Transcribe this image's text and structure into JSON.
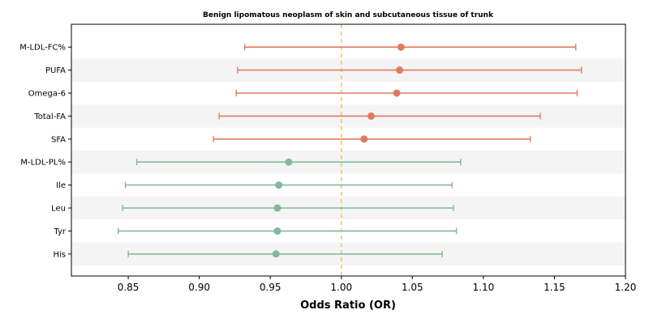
{
  "chart_data": {
    "type": "scatter",
    "subtype": "forest-plot",
    "title": "Benign lipomatous neoplasm of skin and subcutaneous tissue of trunk",
    "xlabel": "Odds Ratio (OR)",
    "ylabel": "",
    "xlim": [
      0.81,
      1.2
    ],
    "x_ticks": [
      0.85,
      0.9,
      0.95,
      1.0,
      1.05,
      1.1,
      1.15,
      1.2
    ],
    "x_tick_labels": [
      "0.85",
      "0.90",
      "0.95",
      "1.00",
      "1.05",
      "1.10",
      "1.15",
      "1.20"
    ],
    "reference_line": 1.0,
    "grid": false,
    "alternating_row_bands": true,
    "colors": {
      "risk": "#e07b5f",
      "protective": "#84b89c",
      "reference_line": "#f0c27a",
      "band": "#f4f4f4"
    },
    "rows": [
      {
        "label": "M-LDL-FC%",
        "or": 1.042,
        "lower": 0.932,
        "upper": 1.165,
        "group": "risk"
      },
      {
        "label": "PUFA",
        "or": 1.041,
        "lower": 0.927,
        "upper": 1.169,
        "group": "risk"
      },
      {
        "label": "Omega-6",
        "or": 1.039,
        "lower": 0.926,
        "upper": 1.166,
        "group": "risk"
      },
      {
        "label": "Total-FA",
        "or": 1.021,
        "lower": 0.914,
        "upper": 1.14,
        "group": "risk"
      },
      {
        "label": "SFA",
        "or": 1.016,
        "lower": 0.91,
        "upper": 1.133,
        "group": "risk"
      },
      {
        "label": "M-LDL-PL%",
        "or": 0.963,
        "lower": 0.856,
        "upper": 1.084,
        "group": "protective"
      },
      {
        "label": "Ile",
        "or": 0.956,
        "lower": 0.848,
        "upper": 1.078,
        "group": "protective"
      },
      {
        "label": "Leu",
        "or": 0.955,
        "lower": 0.846,
        "upper": 1.079,
        "group": "protective"
      },
      {
        "label": "Tyr",
        "or": 0.955,
        "lower": 0.843,
        "upper": 1.081,
        "group": "protective"
      },
      {
        "label": "His",
        "or": 0.954,
        "lower": 0.85,
        "upper": 1.071,
        "group": "protective"
      }
    ]
  }
}
